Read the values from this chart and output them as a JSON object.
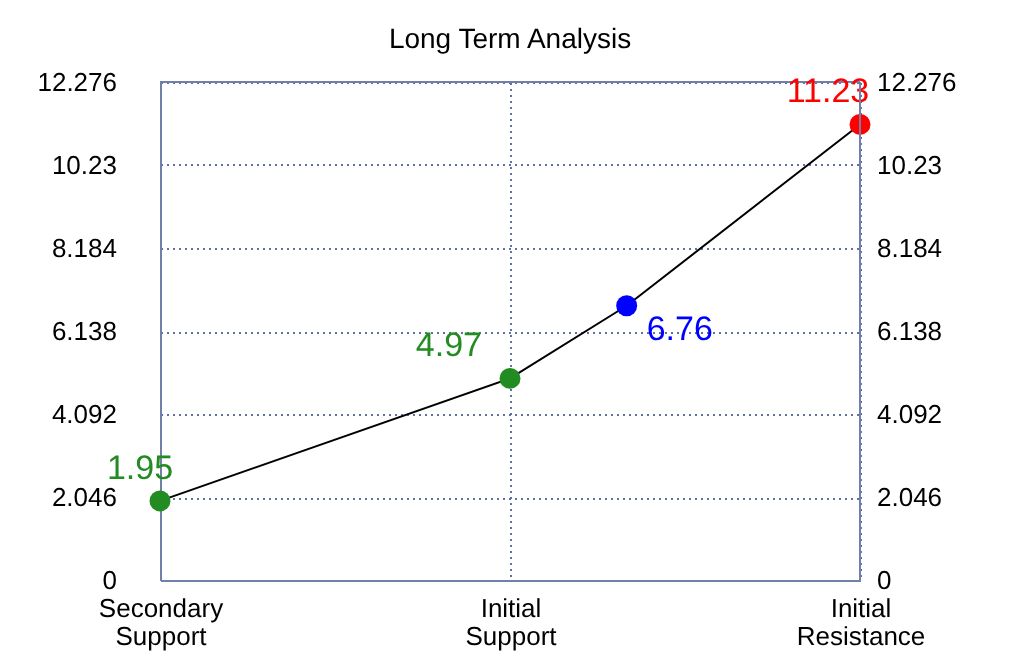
{
  "chart_data": {
    "type": "line",
    "title": "Long Term Analysis",
    "categories": [
      "Secondary Support",
      null,
      null,
      "Initial Support",
      null,
      null,
      "Initial Resistance"
    ],
    "values": [
      1.95,
      null,
      null,
      4.97,
      6.76,
      null,
      11.23
    ],
    "color": "#000000",
    "colors": [
      "#228b22",
      null,
      null,
      "#228b22",
      "#0000ff",
      null,
      "#ff0000"
    ],
    "marker": "circle",
    "data_labels": true,
    "grid": true,
    "ylim": [
      0,
      12.276
    ],
    "yticks": [
      0,
      2.046,
      4.092,
      6.138,
      8.184,
      10.23,
      12.276
    ],
    "y2lim": [
      0,
      12.276
    ],
    "y2ticks": [
      0,
      2.046,
      4.092,
      6.138,
      8.184,
      10.23,
      12.276
    ]
  }
}
